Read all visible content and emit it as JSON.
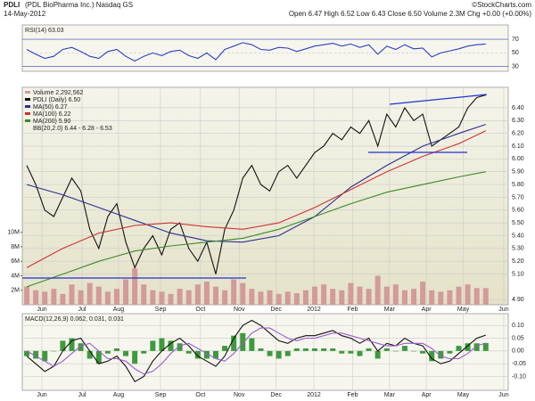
{
  "header": {
    "symbol": "PDLI",
    "name": "(PDL BioPharma Inc.) Nasdaq GS",
    "date": "14-May-2012",
    "quote": "Open 6.47  High 6.52  Low 6.43  Close 6.50  Volume 2.3M  Chg +0.00 (+0.00%)",
    "source": "©StockCharts.com"
  },
  "chart_data": [
    {
      "type": "line",
      "title": "RSI(14) 63.03",
      "xlim": [
        -0.5,
        53.5
      ],
      "ylim": [
        23,
        91
      ],
      "yticks": [
        30,
        50,
        70
      ],
      "grid": true,
      "series": [
        {
          "color": "#2a3fc0",
          "values": [
            55,
            48,
            42,
            45,
            55,
            58,
            52,
            45,
            42,
            52,
            55,
            45,
            38,
            45,
            50,
            46,
            52,
            54,
            46,
            42,
            50,
            40,
            55,
            60,
            65,
            62,
            55,
            54,
            58,
            57,
            52,
            56,
            60,
            62,
            64,
            60,
            63,
            58,
            62,
            48,
            60,
            55,
            62,
            56,
            57,
            44,
            50,
            53,
            56,
            60,
            62,
            63.03
          ]
        }
      ]
    },
    {
      "type": "line",
      "xlim": [
        -0.5,
        53.5
      ],
      "ylim": [
        4.86,
        6.56
      ],
      "grid": true,
      "yticks": [
        {
          "value": 4.9,
          "label": "4.90"
        },
        {
          "value": 5.1,
          "label": "5.10"
        },
        {
          "value": 5.2,
          "label": "5.20"
        },
        {
          "value": 5.3,
          "label": "5.30"
        },
        {
          "value": 5.4,
          "label": "5.40"
        },
        {
          "value": 5.5,
          "label": "5.50"
        },
        {
          "value": 5.6,
          "label": "5.60"
        },
        {
          "value": 5.7,
          "label": "5.70"
        },
        {
          "value": 5.8,
          "label": "5.80"
        },
        {
          "value": 5.9,
          "label": "5.90"
        },
        {
          "value": 6.0,
          "label": "6.00"
        },
        {
          "value": 6.1,
          "label": "6.10"
        },
        {
          "value": 6.2,
          "label": "6.20"
        },
        {
          "value": 6.3,
          "label": "6.30"
        },
        {
          "value": 6.4,
          "label": "6.40"
        }
      ],
      "y2lim": [
        0,
        30
      ],
      "y2ticks": [
        {
          "value": 2,
          "label": "2M"
        },
        {
          "value": 4,
          "label": "4M"
        },
        {
          "value": 6,
          "label": "6M"
        },
        {
          "value": 8,
          "label": "8M"
        },
        {
          "value": 10,
          "label": "10M"
        }
      ],
      "xticks": [
        {
          "value": 1.68,
          "label": "Jun"
        },
        {
          "value": 6.14,
          "label": "Jul"
        },
        {
          "value": 10.2,
          "label": "Aug"
        },
        {
          "value": 14.86,
          "label": "Sep"
        },
        {
          "value": 19.3,
          "label": "Oct"
        },
        {
          "value": 23.6,
          "label": "Nov"
        },
        {
          "value": 27.7,
          "label": "Dec"
        },
        {
          "value": 31.9,
          "label": "2012"
        },
        {
          "value": 36.2,
          "label": "Feb"
        },
        {
          "value": 40.3,
          "label": "Mar"
        },
        {
          "value": 44.4,
          "label": "Apr"
        },
        {
          "value": 48.5,
          "label": "May"
        },
        {
          "value": 53.0,
          "label": "Jun"
        }
      ],
      "extra_legend": [
        "BB(20,2.0) 6.44 - 6.28 - 6.53"
      ],
      "series": [
        {
          "name": "Volume 2,292,562",
          "kind": "bar",
          "axis": "y2",
          "color": "#d39a9a",
          "values": [
            2.5,
            2.0,
            1.8,
            2.2,
            1.5,
            2.8,
            2.0,
            3.0,
            2.5,
            1.8,
            2.2,
            3.5,
            5.0,
            2.8,
            2.0,
            1.8,
            1.5,
            2.2,
            2.0,
            2.8,
            3.2,
            2.5,
            2.0,
            3.5,
            3.0,
            2.2,
            1.8,
            2.0,
            1.5,
            1.8,
            1.6,
            2.0,
            2.5,
            2.8,
            2.2,
            2.0,
            3.0,
            2.5,
            2.2,
            4.0,
            2.5,
            2.8,
            2.0,
            2.2,
            3.2,
            2.0,
            1.8,
            2.0,
            2.5,
            2.8,
            2.3,
            2.3
          ]
        },
        {
          "name": "PDLI (Daily) 6.50",
          "color": "#111111",
          "values": [
            5.95,
            5.8,
            5.6,
            5.55,
            5.7,
            5.85,
            5.75,
            5.45,
            5.3,
            5.55,
            5.65,
            5.35,
            5.15,
            5.3,
            5.4,
            5.25,
            5.45,
            5.5,
            5.3,
            5.2,
            5.35,
            5.1,
            5.45,
            5.6,
            5.85,
            5.95,
            5.8,
            5.75,
            5.9,
            5.95,
            5.85,
            5.95,
            6.05,
            6.1,
            6.2,
            6.15,
            6.25,
            6.2,
            6.3,
            6.1,
            6.35,
            6.25,
            6.4,
            6.3,
            6.35,
            6.1,
            6.15,
            6.2,
            6.25,
            6.4,
            6.48,
            6.5
          ]
        },
        {
          "name": "MA(50) 6.27",
          "color": "#2a2f90",
          "x": [
            0,
            4,
            8,
            12,
            16,
            20,
            24,
            28,
            32,
            36,
            40,
            44,
            48,
            51
          ],
          "values": [
            5.8,
            5.72,
            5.62,
            5.52,
            5.42,
            5.36,
            5.35,
            5.4,
            5.55,
            5.78,
            5.95,
            6.1,
            6.2,
            6.27
          ]
        },
        {
          "name": "MA(100) 6.22",
          "color": "#cc3333",
          "x": [
            0,
            4,
            8,
            12,
            16,
            20,
            24,
            28,
            32,
            36,
            40,
            44,
            48,
            51
          ],
          "values": [
            5.15,
            5.3,
            5.42,
            5.48,
            5.5,
            5.47,
            5.45,
            5.5,
            5.62,
            5.76,
            5.9,
            6.02,
            6.12,
            6.22
          ]
        },
        {
          "name": "MA(200) 5.90",
          "color": "#3a8a2a",
          "x": [
            0,
            4,
            8,
            12,
            16,
            20,
            24,
            28,
            32,
            36,
            40,
            44,
            48,
            51
          ],
          "values": [
            5.0,
            5.1,
            5.2,
            5.28,
            5.32,
            5.35,
            5.38,
            5.45,
            5.55,
            5.65,
            5.74,
            5.8,
            5.86,
            5.9
          ]
        }
      ]
    },
    {
      "type": "line",
      "title": "MACD(12,26,9) 0.062, 0.031, 0.031",
      "xlim": [
        -0.5,
        53.5
      ],
      "ylim": [
        -0.154,
        0.146
      ],
      "grid": true,
      "yticks": [
        {
          "value": -0.1,
          "label": "-0.10"
        },
        {
          "value": -0.05,
          "label": "-0.05"
        },
        {
          "value": 0,
          "label": "0.00"
        },
        {
          "value": 0.05,
          "label": "0.05"
        },
        {
          "value": 0.1,
          "label": "0.10"
        }
      ],
      "xticks": [
        {
          "value": 1.68,
          "label": "Jun"
        },
        {
          "value": 6.14,
          "label": "Jul"
        },
        {
          "value": 10.2,
          "label": "Aug"
        },
        {
          "value": 14.86,
          "label": "Sep"
        },
        {
          "value": 19.3,
          "label": "Oct"
        },
        {
          "value": 23.6,
          "label": "Nov"
        },
        {
          "value": 27.7,
          "label": "Dec"
        },
        {
          "value": 31.9,
          "label": "2012"
        },
        {
          "value": 36.2,
          "label": "Feb"
        },
        {
          "value": 40.3,
          "label": "Mar"
        },
        {
          "value": 44.4,
          "label": "Apr"
        },
        {
          "value": 48.5,
          "label": "May"
        },
        {
          "value": 53.0,
          "label": "Jun"
        }
      ],
      "series": [
        {
          "kind": "bar",
          "color": "#3d9a3d",
          "values": [
            -0.02,
            -0.03,
            -0.04,
            0.0,
            0.04,
            0.05,
            0.03,
            -0.03,
            -0.05,
            -0.01,
            0.01,
            -0.02,
            -0.05,
            -0.01,
            0.04,
            0.05,
            0.04,
            0.03,
            -0.01,
            -0.03,
            -0.03,
            -0.03,
            0.02,
            0.06,
            0.07,
            0.05,
            0.01,
            -0.02,
            -0.03,
            -0.02,
            0.01,
            0.01,
            0.01,
            0.01,
            0.01,
            -0.01,
            -0.01,
            -0.02,
            0.01,
            -0.03,
            0.01,
            0.0,
            0.02,
            0.0,
            -0.01,
            -0.04,
            -0.03,
            -0.01,
            0.02,
            0.03,
            0.03,
            0.031
          ]
        },
        {
          "color": "#111111",
          "values": [
            -0.02,
            -0.05,
            -0.08,
            -0.06,
            0.0,
            0.04,
            0.05,
            0.0,
            -0.05,
            -0.04,
            -0.02,
            -0.06,
            -0.12,
            -0.1,
            -0.04,
            0.0,
            0.03,
            0.05,
            0.02,
            -0.02,
            -0.04,
            -0.06,
            -0.02,
            0.05,
            0.1,
            0.12,
            0.1,
            0.07,
            0.04,
            0.03,
            0.05,
            0.06,
            0.06,
            0.07,
            0.08,
            0.06,
            0.05,
            0.03,
            0.05,
            0.0,
            0.03,
            0.02,
            0.05,
            0.03,
            0.02,
            -0.03,
            -0.05,
            -0.04,
            -0.01,
            0.02,
            0.05,
            0.062
          ]
        },
        {
          "color": "#9a5ccf",
          "values": [
            0.0,
            -0.02,
            -0.04,
            -0.06,
            -0.04,
            -0.01,
            0.02,
            0.03,
            0.0,
            -0.03,
            -0.03,
            -0.04,
            -0.07,
            -0.09,
            -0.08,
            -0.05,
            -0.01,
            0.02,
            0.03,
            0.01,
            -0.01,
            -0.03,
            -0.04,
            -0.01,
            0.03,
            0.07,
            0.09,
            0.09,
            0.07,
            0.05,
            0.04,
            0.05,
            0.05,
            0.06,
            0.07,
            0.07,
            0.06,
            0.05,
            0.04,
            0.03,
            0.02,
            0.02,
            0.03,
            0.03,
            0.03,
            0.01,
            -0.02,
            -0.03,
            -0.03,
            -0.01,
            0.02,
            0.031
          ]
        }
      ]
    }
  ]
}
